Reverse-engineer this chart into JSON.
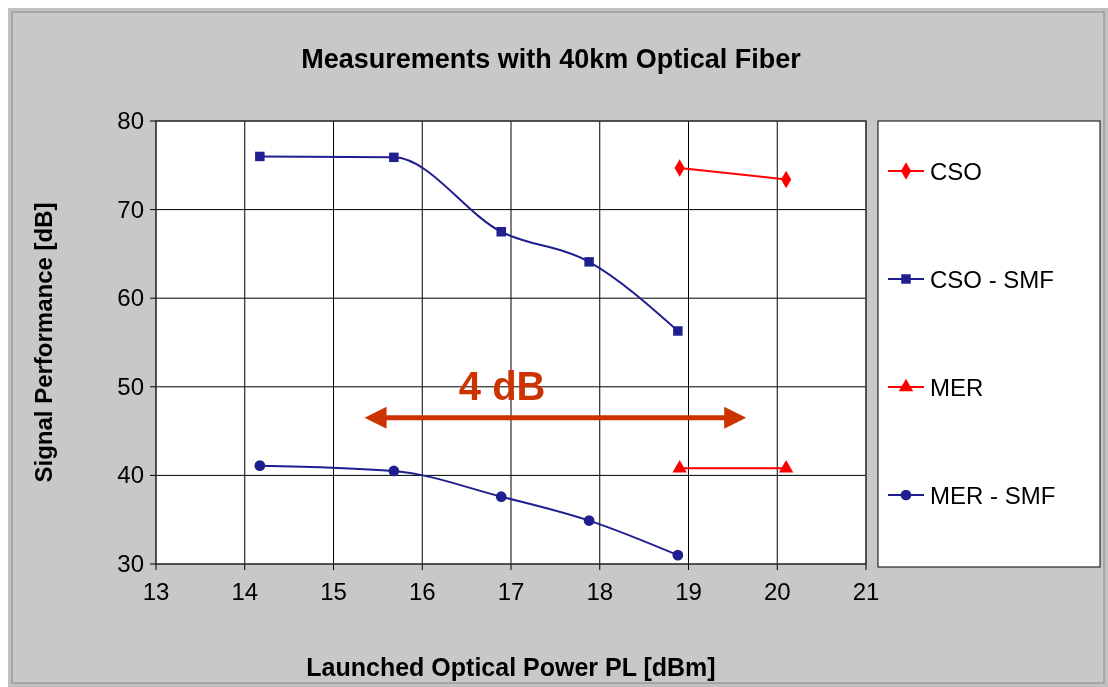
{
  "chart_data": {
    "type": "line",
    "title": "Measurements with 40km Optical Fiber",
    "xlabel": "Launched Optical Power PL [dBm]",
    "ylabel": "Signal Performance [dB]",
    "xlim": [
      13,
      21
    ],
    "xticks": [
      13,
      14,
      15,
      16,
      17,
      18,
      19,
      20,
      21
    ],
    "ylim": [
      30,
      80
    ],
    "yticks": [
      30,
      40,
      50,
      60,
      70,
      80
    ],
    "grid": true,
    "legend": "right",
    "annotations": [
      "4 dB"
    ],
    "series": [
      {
        "name": "CSO",
        "color": "#ff0000",
        "marker": "diamond",
        "x": [
          18.9,
          20.1
        ],
        "values": [
          74.7,
          73.4
        ]
      },
      {
        "name": "CSO - SMF",
        "color": "#1f1f8f",
        "marker": "square",
        "x": [
          14.17,
          15.68,
          16.89,
          17.88,
          18.88
        ],
        "values": [
          76.0,
          75.9,
          67.5,
          64.1,
          56.3
        ]
      },
      {
        "name": "MER",
        "color": "#ff0000",
        "marker": "triangle",
        "x": [
          18.9,
          20.1
        ],
        "values": [
          40.8,
          40.8
        ]
      },
      {
        "name": "MER - SMF",
        "color": "#1f1f8f",
        "marker": "circle",
        "x": [
          14.17,
          15.68,
          16.89,
          17.88,
          18.88
        ],
        "values": [
          41.1,
          40.5,
          37.6,
          34.9,
          31.0
        ]
      }
    ]
  }
}
